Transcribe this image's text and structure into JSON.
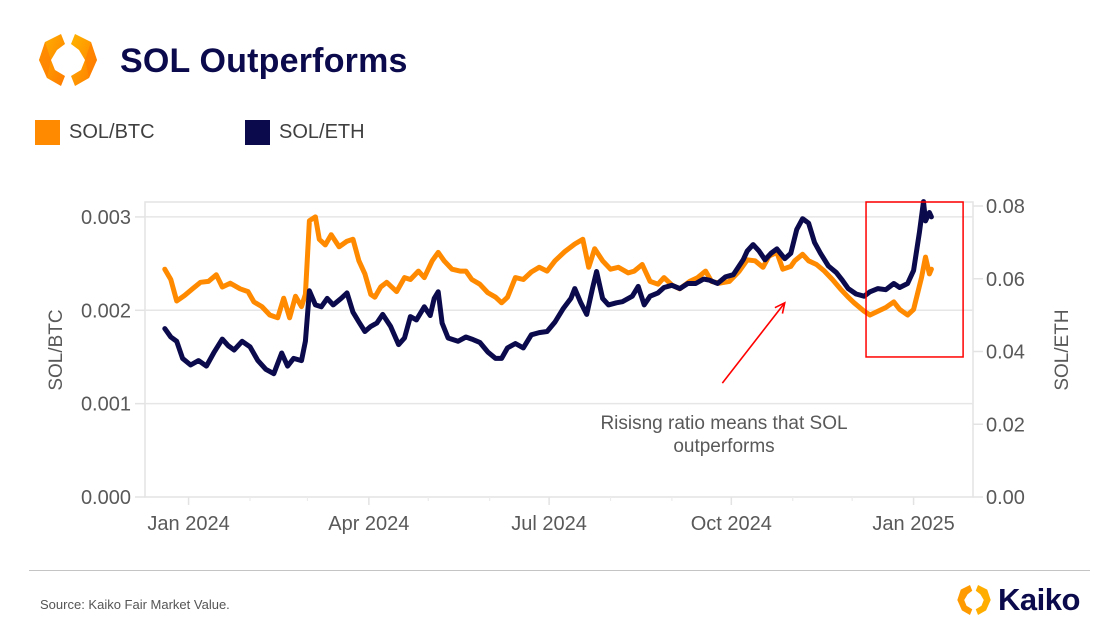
{
  "header": {
    "title": "SOL Outperforms",
    "logo_icon": "kaiko-hexagon-icon"
  },
  "legend": [
    {
      "label": "SOL/BTC",
      "color": "#ff8a00"
    },
    {
      "label": "SOL/ETH",
      "color": "#0b0a4c"
    }
  ],
  "footer": {
    "source": "Source: Kaiko Fair Market Value.",
    "brand": "Kaiko",
    "brand_icon": "kaiko-hexagon-icon"
  },
  "colors": {
    "sol_btc": "#ff8a00",
    "sol_eth": "#0b0a4c",
    "highlight": "#ff0000",
    "annotation_arrow": "#ff0000",
    "grid": "#e6e6e6",
    "title": "#0b0a4c"
  },
  "chart_data": {
    "type": "line",
    "title": "SOL Outperforms",
    "xlabel": "",
    "ylabel": "SOL/BTC",
    "y2label": "SOL/ETH",
    "xlim": [
      "2023-12-10",
      "2025-01-31"
    ],
    "ylim": [
      0,
      0.00316
    ],
    "y2lim": [
      0,
      0.0811
    ],
    "grid": true,
    "legend_position": "top-left",
    "x_ticks": [
      {
        "date": "2024-01-01",
        "label": "Jan 2024"
      },
      {
        "date": "2024-04-01",
        "label": "Apr 2024"
      },
      {
        "date": "2024-07-01",
        "label": "Jul 2024"
      },
      {
        "date": "2024-10-01",
        "label": "Oct 2024"
      },
      {
        "date": "2025-01-01",
        "label": "Jan 2025"
      }
    ],
    "x_minor_ticks": [
      "2023-12-01",
      "2024-02-01",
      "2024-03-01",
      "2024-05-01",
      "2024-06-01",
      "2024-08-01",
      "2024-09-01",
      "2024-11-01",
      "2024-12-01",
      "2025-02-01"
    ],
    "y_ticks": [
      {
        "value": 0.0,
        "label": "0.000"
      },
      {
        "value": 0.001,
        "label": "0.001"
      },
      {
        "value": 0.002,
        "label": "0.002"
      },
      {
        "value": 0.003,
        "label": "0.003"
      }
    ],
    "y2_ticks": [
      {
        "value": 0.0,
        "label": "0.00"
      },
      {
        "value": 0.02,
        "label": "0.02"
      },
      {
        "value": 0.04,
        "label": "0.04"
      },
      {
        "value": 0.06,
        "label": "0.06"
      },
      {
        "value": 0.08,
        "label": "0.08"
      }
    ],
    "series": [
      {
        "name": "SOL/BTC",
        "axis": "left",
        "color": "#ff8a00",
        "points": [
          [
            "2023-12-20",
            0.00244
          ],
          [
            "2023-12-23",
            0.00233
          ],
          [
            "2023-12-26",
            0.0021
          ],
          [
            "2023-12-30",
            0.00216
          ],
          [
            "2024-01-03",
            0.00223
          ],
          [
            "2024-01-07",
            0.0023
          ],
          [
            "2024-01-11",
            0.00231
          ],
          [
            "2024-01-15",
            0.00238
          ],
          [
            "2024-01-18",
            0.00225
          ],
          [
            "2024-01-22",
            0.00229
          ],
          [
            "2024-01-27",
            0.00223
          ],
          [
            "2024-01-31",
            0.0022
          ],
          [
            "2024-02-03",
            0.00209
          ],
          [
            "2024-02-07",
            0.00204
          ],
          [
            "2024-02-11",
            0.00195
          ],
          [
            "2024-02-15",
            0.00192
          ],
          [
            "2024-02-18",
            0.00213
          ],
          [
            "2024-02-21",
            0.00192
          ],
          [
            "2024-02-24",
            0.00215
          ],
          [
            "2024-02-27",
            0.00204
          ],
          [
            "2024-02-29",
            0.00217
          ],
          [
            "2024-03-02",
            0.00296
          ],
          [
            "2024-03-05",
            0.003
          ],
          [
            "2024-03-07",
            0.00276
          ],
          [
            "2024-03-10",
            0.0027
          ],
          [
            "2024-03-13",
            0.00281
          ],
          [
            "2024-03-17",
            0.00268
          ],
          [
            "2024-03-21",
            0.00274
          ],
          [
            "2024-03-24",
            0.00276
          ],
          [
            "2024-03-27",
            0.00253
          ],
          [
            "2024-03-30",
            0.00239
          ],
          [
            "2024-04-02",
            0.00217
          ],
          [
            "2024-04-04",
            0.00214
          ],
          [
            "2024-04-07",
            0.00225
          ],
          [
            "2024-04-10",
            0.0023
          ],
          [
            "2024-04-15",
            0.0022
          ],
          [
            "2024-04-19",
            0.00235
          ],
          [
            "2024-04-22",
            0.00233
          ],
          [
            "2024-04-26",
            0.00242
          ],
          [
            "2024-04-29",
            0.00235
          ],
          [
            "2024-05-03",
            0.00253
          ],
          [
            "2024-05-06",
            0.00262
          ],
          [
            "2024-05-09",
            0.00253
          ],
          [
            "2024-05-13",
            0.00244
          ],
          [
            "2024-05-17",
            0.00242
          ],
          [
            "2024-05-20",
            0.00242
          ],
          [
            "2024-05-23",
            0.00233
          ],
          [
            "2024-05-27",
            0.00228
          ],
          [
            "2024-05-31",
            0.00219
          ],
          [
            "2024-06-04",
            0.00214
          ],
          [
            "2024-06-07",
            0.00208
          ],
          [
            "2024-06-10",
            0.00214
          ],
          [
            "2024-06-14",
            0.00235
          ],
          [
            "2024-06-18",
            0.00233
          ],
          [
            "2024-06-22",
            0.00241
          ],
          [
            "2024-06-26",
            0.00246
          ],
          [
            "2024-06-30",
            0.00242
          ],
          [
            "2024-07-04",
            0.00253
          ],
          [
            "2024-07-09",
            0.00263
          ],
          [
            "2024-07-14",
            0.00271
          ],
          [
            "2024-07-18",
            0.00276
          ],
          [
            "2024-07-21",
            0.00246
          ],
          [
            "2024-07-24",
            0.00266
          ],
          [
            "2024-07-28",
            0.00253
          ],
          [
            "2024-08-01",
            0.00244
          ],
          [
            "2024-08-05",
            0.00246
          ],
          [
            "2024-08-10",
            0.0024
          ],
          [
            "2024-08-13",
            0.00242
          ],
          [
            "2024-08-17",
            0.00249
          ],
          [
            "2024-08-21",
            0.00231
          ],
          [
            "2024-08-25",
            0.00228
          ],
          [
            "2024-08-28",
            0.00235
          ],
          [
            "2024-09-01",
            0.00227
          ],
          [
            "2024-09-05",
            0.00223
          ],
          [
            "2024-09-10",
            0.00231
          ],
          [
            "2024-09-14",
            0.00235
          ],
          [
            "2024-09-18",
            0.00242
          ],
          [
            "2024-09-21",
            0.00231
          ],
          [
            "2024-09-25",
            0.00229
          ],
          [
            "2024-09-30",
            0.00231
          ],
          [
            "2024-10-05",
            0.00242
          ],
          [
            "2024-10-09",
            0.00254
          ],
          [
            "2024-10-13",
            0.00253
          ],
          [
            "2024-10-17",
            0.00246
          ],
          [
            "2024-10-20",
            0.00258
          ],
          [
            "2024-10-24",
            0.00262
          ],
          [
            "2024-10-27",
            0.00244
          ],
          [
            "2024-10-31",
            0.00247
          ],
          [
            "2024-11-02",
            0.00253
          ],
          [
            "2024-11-06",
            0.0026
          ],
          [
            "2024-11-09",
            0.00253
          ],
          [
            "2024-11-13",
            0.00249
          ],
          [
            "2024-11-17",
            0.00242
          ],
          [
            "2024-11-21",
            0.00233
          ],
          [
            "2024-11-25",
            0.00223
          ],
          [
            "2024-11-29",
            0.00214
          ],
          [
            "2024-12-02",
            0.00208
          ],
          [
            "2024-12-07",
            0.00199
          ],
          [
            "2024-12-10",
            0.00195
          ],
          [
            "2024-12-14",
            0.00199
          ],
          [
            "2024-12-18",
            0.00203
          ],
          [
            "2024-12-22",
            0.00209
          ],
          [
            "2024-12-25",
            0.00201
          ],
          [
            "2024-12-29",
            0.00195
          ],
          [
            "2025-01-01",
            0.00201
          ],
          [
            "2025-01-05",
            0.00235
          ],
          [
            "2025-01-07",
            0.00257
          ],
          [
            "2025-01-09",
            0.00239
          ],
          [
            "2025-01-10",
            0.00244
          ]
        ]
      },
      {
        "name": "SOL/ETH",
        "axis": "right",
        "color": "#0b0a4c",
        "points": [
          [
            "2023-12-20",
            0.0463
          ],
          [
            "2023-12-23",
            0.044
          ],
          [
            "2023-12-26",
            0.0428
          ],
          [
            "2023-12-29",
            0.0381
          ],
          [
            "2024-01-02",
            0.0363
          ],
          [
            "2024-01-06",
            0.0375
          ],
          [
            "2024-01-10",
            0.036
          ],
          [
            "2024-01-14",
            0.0399
          ],
          [
            "2024-01-18",
            0.0434
          ],
          [
            "2024-01-21",
            0.0416
          ],
          [
            "2024-01-24",
            0.0404
          ],
          [
            "2024-01-28",
            0.0428
          ],
          [
            "2024-02-01",
            0.0413
          ],
          [
            "2024-02-05",
            0.0375
          ],
          [
            "2024-02-09",
            0.0351
          ],
          [
            "2024-02-13",
            0.0339
          ],
          [
            "2024-02-17",
            0.0396
          ],
          [
            "2024-02-20",
            0.036
          ],
          [
            "2024-02-23",
            0.0381
          ],
          [
            "2024-02-27",
            0.0375
          ],
          [
            "2024-02-29",
            0.0428
          ],
          [
            "2024-03-02",
            0.0567
          ],
          [
            "2024-03-05",
            0.0528
          ],
          [
            "2024-03-08",
            0.0523
          ],
          [
            "2024-03-11",
            0.0546
          ],
          [
            "2024-03-14",
            0.0528
          ],
          [
            "2024-03-18",
            0.0546
          ],
          [
            "2024-03-21",
            0.0561
          ],
          [
            "2024-03-24",
            0.0508
          ],
          [
            "2024-03-27",
            0.0481
          ],
          [
            "2024-03-30",
            0.0455
          ],
          [
            "2024-04-02",
            0.0469
          ],
          [
            "2024-04-05",
            0.0478
          ],
          [
            "2024-04-08",
            0.0502
          ],
          [
            "2024-04-12",
            0.0469
          ],
          [
            "2024-04-16",
            0.0419
          ],
          [
            "2024-04-19",
            0.0437
          ],
          [
            "2024-04-22",
            0.0496
          ],
          [
            "2024-04-25",
            0.0487
          ],
          [
            "2024-04-29",
            0.0523
          ],
          [
            "2024-05-02",
            0.0499
          ],
          [
            "2024-05-04",
            0.0546
          ],
          [
            "2024-05-06",
            0.0564
          ],
          [
            "2024-05-08",
            0.0478
          ],
          [
            "2024-05-11",
            0.0437
          ],
          [
            "2024-05-16",
            0.0428
          ],
          [
            "2024-05-20",
            0.044
          ],
          [
            "2024-05-23",
            0.0434
          ],
          [
            "2024-05-27",
            0.0425
          ],
          [
            "2024-05-31",
            0.0399
          ],
          [
            "2024-06-04",
            0.0381
          ],
          [
            "2024-06-07",
            0.0381
          ],
          [
            "2024-06-10",
            0.041
          ],
          [
            "2024-06-14",
            0.0422
          ],
          [
            "2024-06-18",
            0.041
          ],
          [
            "2024-06-22",
            0.0446
          ],
          [
            "2024-06-26",
            0.0452
          ],
          [
            "2024-06-30",
            0.0455
          ],
          [
            "2024-07-04",
            0.0481
          ],
          [
            "2024-07-08",
            0.0517
          ],
          [
            "2024-07-12",
            0.0546
          ],
          [
            "2024-07-14",
            0.0573
          ],
          [
            "2024-07-17",
            0.0534
          ],
          [
            "2024-07-20",
            0.0502
          ],
          [
            "2024-07-23",
            0.0576
          ],
          [
            "2024-07-25",
            0.062
          ],
          [
            "2024-07-28",
            0.0546
          ],
          [
            "2024-07-31",
            0.0528
          ],
          [
            "2024-08-04",
            0.0534
          ],
          [
            "2024-08-07",
            0.0537
          ],
          [
            "2024-08-12",
            0.0552
          ],
          [
            "2024-08-15",
            0.0579
          ],
          [
            "2024-08-18",
            0.0528
          ],
          [
            "2024-08-21",
            0.0552
          ],
          [
            "2024-08-25",
            0.0561
          ],
          [
            "2024-08-28",
            0.0576
          ],
          [
            "2024-09-01",
            0.0582
          ],
          [
            "2024-09-05",
            0.0573
          ],
          [
            "2024-09-09",
            0.0587
          ],
          [
            "2024-09-13",
            0.0587
          ],
          [
            "2024-09-17",
            0.0599
          ],
          [
            "2024-09-20",
            0.0596
          ],
          [
            "2024-09-24",
            0.0587
          ],
          [
            "2024-09-28",
            0.0605
          ],
          [
            "2024-10-02",
            0.0611
          ],
          [
            "2024-10-07",
            0.0652
          ],
          [
            "2024-10-09",
            0.0676
          ],
          [
            "2024-10-12",
            0.0694
          ],
          [
            "2024-10-15",
            0.0676
          ],
          [
            "2024-10-18",
            0.0652
          ],
          [
            "2024-10-21",
            0.067
          ],
          [
            "2024-10-24",
            0.0682
          ],
          [
            "2024-10-28",
            0.0655
          ],
          [
            "2024-10-31",
            0.067
          ],
          [
            "2024-11-03",
            0.0735
          ],
          [
            "2024-11-06",
            0.0765
          ],
          [
            "2024-11-09",
            0.0753
          ],
          [
            "2024-11-12",
            0.07
          ],
          [
            "2024-11-15",
            0.067
          ],
          [
            "2024-11-19",
            0.0635
          ],
          [
            "2024-11-23",
            0.0617
          ],
          [
            "2024-11-26",
            0.0596
          ],
          [
            "2024-11-29",
            0.0573
          ],
          [
            "2024-12-03",
            0.0558
          ],
          [
            "2024-12-07",
            0.0552
          ],
          [
            "2024-12-10",
            0.0564
          ],
          [
            "2024-12-14",
            0.0573
          ],
          [
            "2024-12-18",
            0.057
          ],
          [
            "2024-12-22",
            0.0587
          ],
          [
            "2024-12-25",
            0.0576
          ],
          [
            "2024-12-29",
            0.0587
          ],
          [
            "2025-01-01",
            0.0623
          ],
          [
            "2025-01-04",
            0.0729
          ],
          [
            "2025-01-06",
            0.0812
          ],
          [
            "2025-01-07",
            0.0759
          ],
          [
            "2025-01-09",
            0.0782
          ],
          [
            "2025-01-10",
            0.077
          ]
        ]
      }
    ],
    "annotations": [
      {
        "type": "text",
        "lines": [
          "Risisng ratio means that SOL",
          "outperforms"
        ],
        "color": "#595959"
      },
      {
        "type": "arrow",
        "from": [
          "2024-10-01",
          0.00122
        ],
        "to": [
          "2024-11-01",
          0.00208
        ],
        "color": "#ff0000"
      },
      {
        "type": "highlight-box",
        "x_range": [
          "2024-12-08",
          "2025-01-26"
        ],
        "y_range": [
          0.0015,
          0.00316
        ],
        "color": "#ff0000"
      }
    ]
  }
}
